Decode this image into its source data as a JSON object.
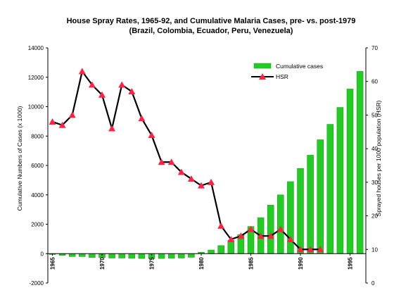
{
  "chart_data": {
    "type": "bar+line",
    "title_line1": "House Spray Rates, 1965-92, and Cumulative Malaria Cases, pre- vs. post-1979",
    "title_line2": "(Brazil, Colombia, Ecuador, Peru, Venezuela)",
    "ylabel_left": "Cumulative Numbers of Cases (x 1000)",
    "ylabel_right": "Sprayed houses per 1000 population (HSR)",
    "ylim_left": [
      -2000,
      14000
    ],
    "ylim_right": [
      0,
      70
    ],
    "yticks_left": [
      "-2000",
      "0",
      "2000",
      "4000",
      "6000",
      "8000",
      "10000",
      "12000",
      "14000"
    ],
    "yticks_right": [
      "0",
      "10",
      "20",
      "30",
      "40",
      "50",
      "60",
      "70"
    ],
    "xticks": [
      "1965",
      "1970",
      "1975",
      "1980",
      "1985",
      "1990",
      "1995"
    ],
    "years": [
      1965,
      1966,
      1967,
      1968,
      1969,
      1970,
      1971,
      1972,
      1973,
      1974,
      1975,
      1976,
      1977,
      1978,
      1979,
      1980,
      1981,
      1982,
      1983,
      1984,
      1985,
      1986,
      1987,
      1988,
      1989,
      1990,
      1991,
      1992,
      1993,
      1994,
      1995,
      1996
    ],
    "series": [
      {
        "name": "Cumulative cases",
        "color": "#22cc22",
        "values": [
          -60,
          -120,
          -200,
          -200,
          -260,
          -260,
          -300,
          -300,
          -320,
          -330,
          -340,
          -330,
          -320,
          -300,
          -250,
          100,
          250,
          550,
          900,
          1300,
          1850,
          2450,
          3300,
          4000,
          4900,
          5800,
          6700,
          7750,
          8800,
          9950,
          11200,
          12400
        ]
      },
      {
        "name": "HSR",
        "color": "#ff2244",
        "values": [
          48,
          47,
          50,
          63,
          59,
          56,
          46,
          59,
          57,
          49,
          44,
          36,
          36,
          33,
          31,
          29,
          30,
          17,
          13,
          14,
          16,
          14,
          14,
          16,
          13,
          10,
          10,
          10,
          null,
          null,
          null,
          null
        ]
      }
    ],
    "legend_position": "top-right"
  }
}
